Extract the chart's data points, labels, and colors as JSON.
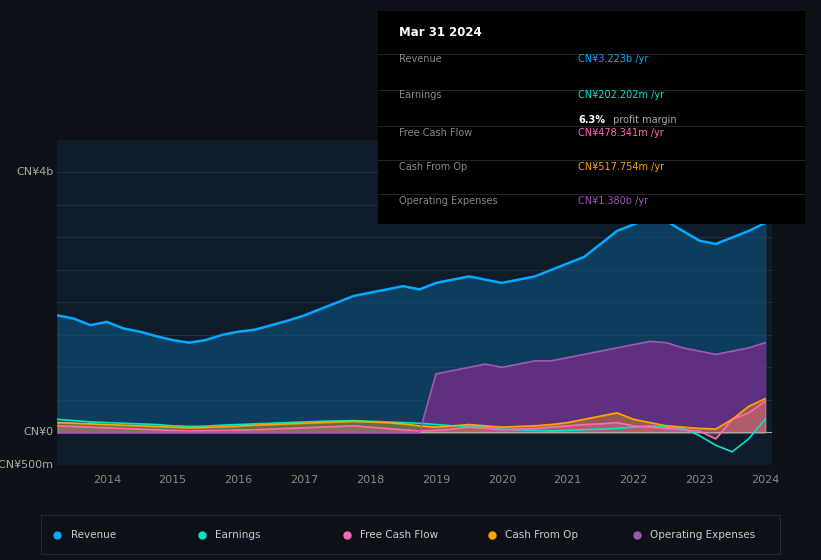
{
  "bg_color": "#0d1117",
  "chart_bg": "#0d1b2a",
  "title_date": "Mar 31 2024",
  "info_box": {
    "Revenue": {
      "value": "CN¥3.223b",
      "color": "#00aaff"
    },
    "Earnings": {
      "value": "CN¥202.202m",
      "color": "#00e5cc"
    },
    "profit_margin": "6.3%",
    "Free Cash Flow": {
      "value": "CN¥478.341m",
      "color": "#ff69b4"
    },
    "Cash From Op": {
      "value": "CN¥517.754m",
      "color": "#ffa500"
    },
    "Operating Expenses": {
      "value": "CN¥1.380b",
      "color": "#9b59b6"
    }
  },
  "ylabel_top": "CN¥4b",
  "ylabel_mid": "CN¥0",
  "ylabel_bot": "-CN¥500m",
  "ylim": [
    -500,
    4500
  ],
  "years": [
    2013.25,
    2013.5,
    2013.75,
    2014.0,
    2014.25,
    2014.5,
    2014.75,
    2015.0,
    2015.25,
    2015.5,
    2015.75,
    2016.0,
    2016.25,
    2016.5,
    2016.75,
    2017.0,
    2017.25,
    2017.5,
    2017.75,
    2018.0,
    2018.25,
    2018.5,
    2018.75,
    2019.0,
    2019.25,
    2019.5,
    2019.75,
    2020.0,
    2020.25,
    2020.5,
    2020.75,
    2021.0,
    2021.25,
    2021.5,
    2021.75,
    2022.0,
    2022.25,
    2022.5,
    2022.75,
    2023.0,
    2023.25,
    2023.5,
    2023.75,
    2024.0
  ],
  "revenue": [
    1800,
    1750,
    1650,
    1700,
    1600,
    1550,
    1480,
    1420,
    1380,
    1420,
    1500,
    1550,
    1580,
    1650,
    1720,
    1800,
    1900,
    2000,
    2100,
    2150,
    2200,
    2250,
    2200,
    2300,
    2350,
    2400,
    2350,
    2300,
    2350,
    2400,
    2500,
    2600,
    2700,
    2900,
    3100,
    3200,
    3300,
    3250,
    3100,
    2950,
    2900,
    3000,
    3100,
    3223
  ],
  "earnings": [
    200,
    180,
    160,
    150,
    140,
    130,
    120,
    100,
    90,
    95,
    110,
    120,
    130,
    140,
    150,
    160,
    170,
    175,
    180,
    170,
    160,
    150,
    140,
    120,
    100,
    90,
    80,
    50,
    40,
    30,
    20,
    30,
    40,
    50,
    60,
    80,
    100,
    80,
    60,
    -50,
    -200,
    -300,
    -100,
    202
  ],
  "free_cash_flow": [
    100,
    90,
    80,
    70,
    60,
    50,
    40,
    30,
    20,
    25,
    30,
    35,
    40,
    50,
    60,
    70,
    80,
    90,
    100,
    80,
    60,
    40,
    20,
    30,
    50,
    80,
    60,
    40,
    50,
    60,
    80,
    100,
    120,
    130,
    150,
    100,
    80,
    60,
    40,
    20,
    -100,
    200,
    300,
    478
  ],
  "cash_from_op": [
    150,
    140,
    130,
    120,
    110,
    100,
    90,
    80,
    70,
    75,
    85,
    95,
    110,
    120,
    130,
    140,
    150,
    160,
    170,
    160,
    150,
    130,
    100,
    80,
    100,
    120,
    100,
    80,
    90,
    100,
    120,
    150,
    200,
    250,
    300,
    200,
    150,
    100,
    80,
    60,
    50,
    200,
    400,
    518
  ],
  "op_expenses": [
    0,
    0,
    0,
    0,
    0,
    0,
    0,
    0,
    0,
    0,
    0,
    0,
    0,
    0,
    0,
    0,
    0,
    0,
    0,
    0,
    0,
    0,
    0,
    900,
    950,
    1000,
    1050,
    1000,
    1050,
    1100,
    1100,
    1150,
    1200,
    1250,
    1300,
    1350,
    1400,
    1380,
    1300,
    1250,
    1200,
    1250,
    1300,
    1380
  ],
  "colors": {
    "revenue": "#00aaff",
    "revenue_fill": "#0d4f7a",
    "earnings": "#00e5cc",
    "earnings_fill": "#1a6b5e",
    "free_cash_flow": "#ff69b4",
    "cash_from_op": "#ffa500",
    "op_expenses": "#7b2d8b",
    "op_expenses_line": "#9b59b6"
  },
  "legend": [
    {
      "label": "Revenue",
      "color": "#00aaff"
    },
    {
      "label": "Earnings",
      "color": "#00e5cc"
    },
    {
      "label": "Free Cash Flow",
      "color": "#ff69b4"
    },
    {
      "label": "Cash From Op",
      "color": "#ffa500"
    },
    {
      "label": "Operating Expenses",
      "color": "#9b59b6"
    }
  ]
}
